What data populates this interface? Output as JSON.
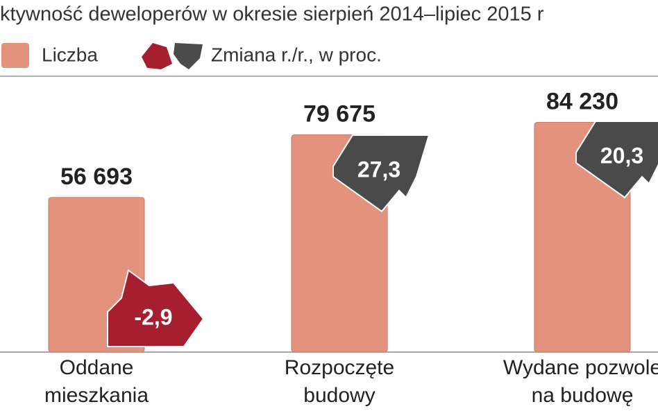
{
  "chart_data": {
    "type": "bar",
    "title": "ktywność deweloperów w okresie sierpień 2014–lipiec 2015 r",
    "categories": [
      [
        "Oddane",
        "mieszkania"
      ],
      [
        "Rozpoczęte",
        "budowy"
      ],
      [
        "Wydane pozwole",
        "na budowę"
      ]
    ],
    "ylim": [
      0,
      94000
    ],
    "series": [
      {
        "name": "Liczba",
        "color": "#e3937d",
        "values": [
          56693,
          79675,
          84230
        ],
        "value_labels": [
          "56 693",
          "79 675",
          "84 230"
        ]
      },
      {
        "name": "Zmiana r./r., w proc.",
        "colors": {
          "negative": "#a51f30",
          "positive": "#4a4a4a"
        },
        "values": [
          -2.9,
          27.3,
          20.3
        ],
        "value_labels": [
          "-2,9",
          "27,3",
          "20,3"
        ]
      }
    ]
  }
}
